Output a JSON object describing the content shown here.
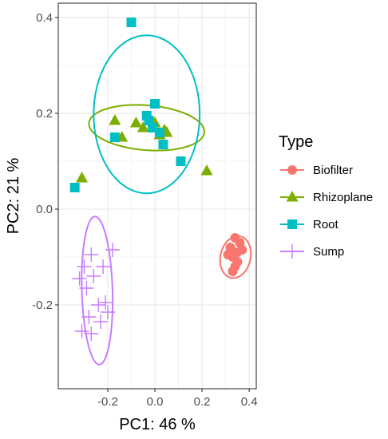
{
  "chart_data": {
    "type": "scatter",
    "xlabel": "PC1:  46 %",
    "ylabel": "PC2:  21 %",
    "xlim": [
      -0.41,
      0.43
    ],
    "ylim": [
      -0.375,
      0.43
    ],
    "x_ticks": [
      -0.2,
      0.0,
      0.2,
      0.4
    ],
    "x_tick_labels": [
      "-0.2",
      "0.0",
      "0.2",
      "0.4"
    ],
    "y_ticks": [
      -0.2,
      0.0,
      0.2,
      0.4
    ],
    "y_tick_labels": [
      "-0.2",
      "0.0",
      "0.2",
      "0.4"
    ],
    "grid": true,
    "legend": {
      "title": "Type",
      "position": "right"
    },
    "series": [
      {
        "name": "Biofilter",
        "color": "#F8766D",
        "marker": "circle",
        "points": [
          [
            0.34,
            -0.06
          ],
          [
            0.36,
            -0.07
          ],
          [
            0.32,
            -0.08
          ],
          [
            0.35,
            -0.09
          ],
          [
            0.37,
            -0.085
          ],
          [
            0.33,
            -0.1
          ],
          [
            0.35,
            -0.11
          ],
          [
            0.31,
            -0.095
          ],
          [
            0.34,
            -0.12
          ],
          [
            0.33,
            -0.13
          ]
        ],
        "ellipse": {
          "cx": 0.342,
          "cy": -0.1,
          "rx": 0.043,
          "ry": 0.066,
          "angle_deg": -80
        }
      },
      {
        "name": "Rhizoplane",
        "color": "#7CAE00",
        "marker": "triangle",
        "points": [
          [
            -0.31,
            0.065
          ],
          [
            -0.17,
            0.185
          ],
          [
            -0.14,
            0.15
          ],
          [
            -0.08,
            0.18
          ],
          [
            -0.05,
            0.17
          ],
          [
            0.0,
            0.18
          ],
          [
            0.02,
            0.155
          ],
          [
            0.04,
            0.165
          ],
          [
            0.05,
            0.16
          ],
          [
            0.22,
            0.08
          ]
        ],
        "ellipse": {
          "cx": -0.035,
          "cy": 0.17,
          "rx": 0.245,
          "ry": 0.047,
          "angle_deg": -2
        }
      },
      {
        "name": "Root",
        "color": "#00BFC4",
        "marker": "square",
        "points": [
          [
            -0.1,
            0.39
          ],
          [
            0.0,
            0.22
          ],
          [
            -0.035,
            0.195
          ],
          [
            -0.025,
            0.185
          ],
          [
            -0.01,
            0.17
          ],
          [
            0.02,
            0.16
          ],
          [
            -0.17,
            0.15
          ],
          [
            0.035,
            0.135
          ],
          [
            0.11,
            0.1
          ],
          [
            -0.34,
            0.045
          ]
        ],
        "ellipse": {
          "cx": -0.035,
          "cy": 0.198,
          "rx": 0.225,
          "ry": 0.165,
          "angle_deg": 0
        }
      },
      {
        "name": "Sump",
        "color": "#C77CFF",
        "marker": "plus",
        "points": [
          [
            -0.18,
            -0.085
          ],
          [
            -0.27,
            -0.095
          ],
          [
            -0.22,
            -0.12
          ],
          [
            -0.3,
            -0.12
          ],
          [
            -0.26,
            -0.14
          ],
          [
            -0.32,
            -0.145
          ],
          [
            -0.29,
            -0.165
          ],
          [
            -0.24,
            -0.2
          ],
          [
            -0.21,
            -0.195
          ],
          [
            -0.2,
            -0.215
          ],
          [
            -0.28,
            -0.225
          ],
          [
            -0.23,
            -0.235
          ],
          [
            -0.31,
            -0.255
          ],
          [
            -0.27,
            -0.26
          ]
        ],
        "ellipse": {
          "cx": -0.245,
          "cy": -0.17,
          "rx": 0.155,
          "ry": 0.065,
          "angle_deg": -86
        }
      }
    ]
  }
}
